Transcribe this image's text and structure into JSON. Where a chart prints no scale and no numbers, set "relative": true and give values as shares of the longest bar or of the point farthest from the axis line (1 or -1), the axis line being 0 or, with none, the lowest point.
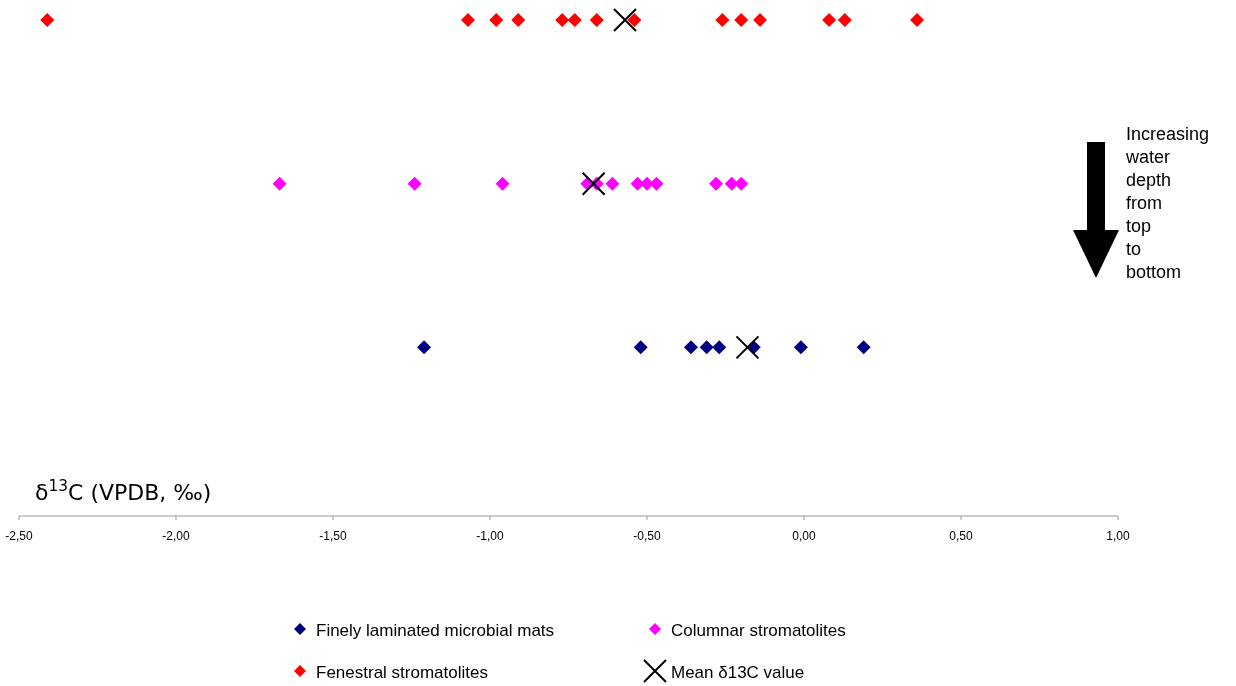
{
  "chart_data": {
    "type": "scatter",
    "relative": true,
    "xlabel": "δ$^{13}$C (VPDB, ‰)",
    "xlim": [
      -2.5,
      1.0
    ],
    "xticks": [
      {
        "value": -2.5,
        "label": "-2,50"
      },
      {
        "value": -2,
        "label": "-2,00"
      },
      {
        "value": -1.5,
        "label": "-1,50"
      },
      {
        "value": -1,
        "label": "-1,00"
      },
      {
        "value": -0.5,
        "label": "-0,50"
      },
      {
        "value": 0,
        "label": "0,00"
      },
      {
        "value": 0.5,
        "label": "0,50"
      },
      {
        "value": 1,
        "label": "1,00"
      }
    ],
    "marker": "diamond",
    "legend": "bottom",
    "grid": false,
    "annotations": [
      "Increasing water depth from top to bottom"
    ],
    "series": [
      {
        "name": "Finely laminated microbial mats",
        "color": "#000080",
        "x": [
          -1.21,
          -0.52,
          -0.36,
          -0.31,
          -0.27,
          -0.16,
          -0.01,
          0.19
        ],
        "values": [
          0.34,
          0.34,
          0.34,
          0.34,
          0.34,
          0.34,
          0.34,
          0.34
        ]
      },
      {
        "name": "Columnar stromatolites",
        "color": "#ff00ff",
        "x": [
          -1.67,
          -1.24,
          -0.96,
          -0.69,
          -0.66,
          -0.61,
          -0.53,
          -0.5,
          -0.47,
          -0.28,
          -0.23,
          -0.2
        ],
        "values": [
          0.67,
          0.67,
          0.67,
          0.67,
          0.67,
          0.67,
          0.67,
          0.67,
          0.67,
          0.67,
          0.67,
          0.67
        ]
      },
      {
        "name": "Fenestral stromatolites",
        "color": "#ff0000",
        "x": [
          -2.41,
          -1.07,
          -0.98,
          -0.91,
          -0.77,
          -0.73,
          -0.66,
          -0.54,
          -0.26,
          -0.2,
          -0.14,
          0.08,
          0.13,
          0.36
        ],
        "values": [
          1,
          1,
          1,
          1,
          1,
          1,
          1,
          1,
          1,
          1,
          1,
          1,
          1,
          1
        ]
      },
      {
        "name": "Mean  δ13C value",
        "color": "#000000",
        "marker": "cross",
        "x": [
          -0.18,
          -0.67,
          -0.57
        ],
        "values": [
          0.34,
          0.67,
          1
        ]
      }
    ]
  }
}
